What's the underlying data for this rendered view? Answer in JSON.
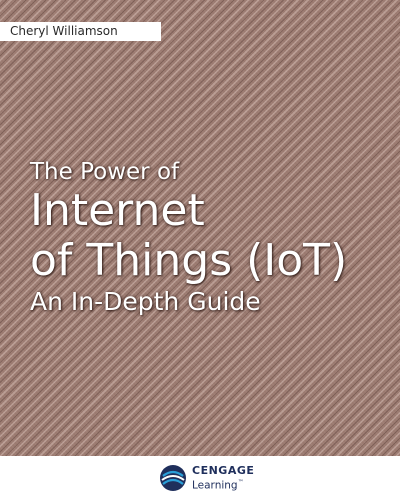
{
  "cover": {
    "author": "Cheryl Williamson",
    "title_line1": "The Power of",
    "title_line2": "Internet",
    "title_line3": "of Things (IoT)",
    "subtitle": "An In-Depth Guide",
    "colors": {
      "fabric_base": "#9b7a70",
      "title_text": "#ffffff",
      "logo_navy": "#1f2f5c",
      "logo_accent": "#2a9fd8"
    }
  },
  "publisher": {
    "logo_icon": "cengage-globe-icon",
    "name_top": "CENGAGE",
    "name_bottom": "Learning",
    "trademark": "™"
  }
}
